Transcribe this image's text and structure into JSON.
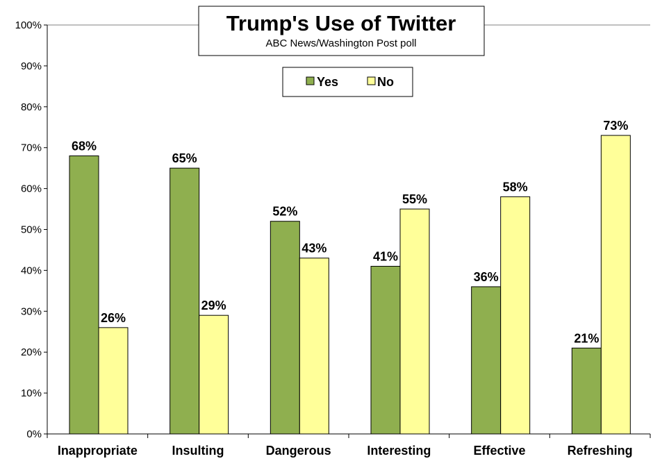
{
  "chart_data": {
    "type": "bar",
    "title": "Trump's Use of Twitter",
    "subtitle": "ABC News/Washington  Post  poll",
    "categories": [
      "Inappropriate",
      "Insulting",
      "Dangerous",
      "Interesting",
      "Effective",
      "Refreshing"
    ],
    "series": [
      {
        "name": "Yes",
        "color": "#8faf4f",
        "values": [
          68,
          65,
          52,
          41,
          36,
          21
        ]
      },
      {
        "name": "No",
        "color": "#ffff99",
        "values": [
          26,
          29,
          43,
          55,
          58,
          73
        ]
      }
    ],
    "data_labels": {
      "Yes": [
        "68%",
        "65%",
        "52%",
        "41%",
        "36%",
        "21%"
      ],
      "No": [
        "26%",
        "29%",
        "43%",
        "55%",
        "58%",
        "73%"
      ]
    },
    "y_ticks": [
      "0%",
      "10%",
      "20%",
      "30%",
      "40%",
      "50%",
      "60%",
      "70%",
      "80%",
      "90%",
      "100%"
    ],
    "ylim": [
      0,
      100
    ],
    "grid": false,
    "legend_position": "top-center"
  }
}
